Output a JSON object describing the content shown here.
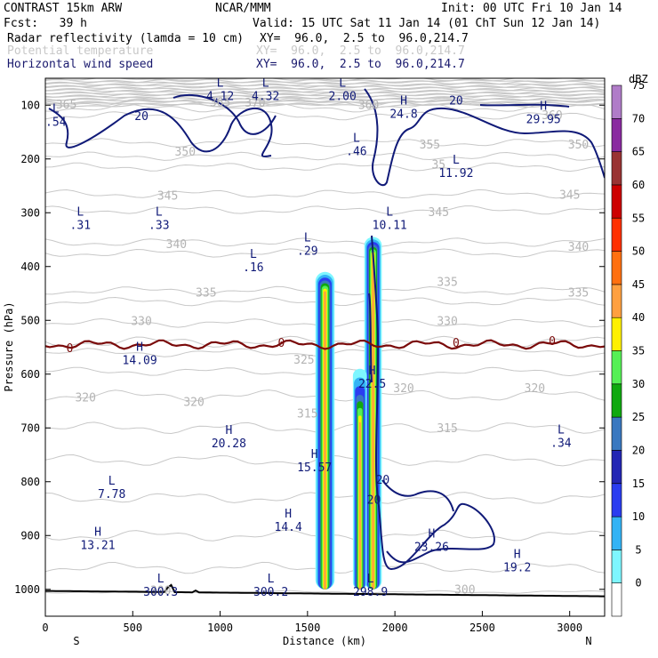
{
  "header": {
    "model": "CONTRAST 15km ARW",
    "center": "NCAR/MMM",
    "init": "Init: 00 UTC Fri 10 Jan 14",
    "fcst": "Fcst:   39 h",
    "valid": "Valid: 15 UTC Sat 11 Jan 14 (01 ChT Sun 12 Jan 14)",
    "field1": "Radar reflectivity (lamda = 10 cm)",
    "field1_xy": "XY=  96.0,  2.5 to  96.0,214.7",
    "field2": "Potential temperature",
    "field2_xy": "XY=  96.0,  2.5 to  96.0,214.7",
    "field3": "Horizontal wind speed",
    "field3_xy": "XY=  96.0,  2.5 to  96.0,214.7"
  },
  "chart_data": {
    "type": "cross-section",
    "xlabel": "Distance (km)",
    "ylabel": "Pressure (hPa)",
    "xlim": [
      0,
      3200
    ],
    "ylim": [
      1050,
      50
    ],
    "x_ticks": [
      "0",
      "500",
      "1000",
      "1500",
      "2000",
      "2500",
      "3000"
    ],
    "y_ticks": [
      "100",
      "200",
      "300",
      "400",
      "500",
      "600",
      "700",
      "800",
      "900",
      "1000"
    ],
    "direction_labels": {
      "left": "S",
      "right": "N"
    },
    "colorbar": {
      "unit": "dBZ",
      "levels": [
        "0",
        "5",
        "10",
        "15",
        "20",
        "25",
        "30",
        "35",
        "40",
        "45",
        "50",
        "55",
        "60",
        "65",
        "70",
        "75"
      ],
      "colors": [
        "#ffffff",
        "#7ef6ff",
        "#33b3f5",
        "#2a3df0",
        "#2326b4",
        "#3a78c0",
        "#10a910",
        "#55f055",
        "#fff000",
        "#ffa040",
        "#ff7010",
        "#ff3000",
        "#cd0000",
        "#993333",
        "#8a2aa0",
        "#b07cc8"
      ]
    },
    "theta_labels": [
      {
        "v": "365",
        "x": 120,
        "p": 100
      },
      {
        "v": "365",
        "x": 1000,
        "p": 96
      },
      {
        "v": "370",
        "x": 1200,
        "p": 97
      },
      {
        "v": "360",
        "x": 1850,
        "p": 101
      },
      {
        "v": "360",
        "x": 2900,
        "p": 120
      },
      {
        "v": "355",
        "x": 2200,
        "p": 175
      },
      {
        "v": "350",
        "x": 800,
        "p": 188
      },
      {
        "v": "350",
        "x": 3050,
        "p": 175
      },
      {
        "v": "35",
        "x": 2250,
        "p": 212
      },
      {
        "v": "345",
        "x": 700,
        "p": 270
      },
      {
        "v": "345",
        "x": 2250,
        "p": 300
      },
      {
        "v": "345",
        "x": 3000,
        "p": 268
      },
      {
        "v": "340",
        "x": 750,
        "p": 360
      },
      {
        "v": "340",
        "x": 3050,
        "p": 365
      },
      {
        "v": "335",
        "x": 920,
        "p": 450
      },
      {
        "v": "335",
        "x": 2300,
        "p": 430
      },
      {
        "v": "335",
        "x": 3050,
        "p": 450
      },
      {
        "v": "330",
        "x": 550,
        "p": 503
      },
      {
        "v": "330",
        "x": 2300,
        "p": 503
      },
      {
        "v": "325",
        "x": 1480,
        "p": 575
      },
      {
        "v": "320",
        "x": 230,
        "p": 645
      },
      {
        "v": "320",
        "x": 850,
        "p": 653
      },
      {
        "v": "320",
        "x": 2050,
        "p": 628
      },
      {
        "v": "320",
        "x": 2800,
        "p": 628
      },
      {
        "v": "315",
        "x": 1500,
        "p": 675
      },
      {
        "v": "315",
        "x": 2300,
        "p": 702
      },
      {
        "v": "300",
        "x": 660,
        "p": 1004
      },
      {
        "v": "300",
        "x": 2400,
        "p": 1002
      }
    ],
    "wind_contour_labels": [
      {
        "v": "20",
        "x": 550,
        "p": 122
      },
      {
        "v": "20",
        "x": 2350,
        "p": 93
      },
      {
        "v": "0",
        "x": 140,
        "p": 553
      },
      {
        "v": "0",
        "x": 1350,
        "p": 543
      },
      {
        "v": "0",
        "x": 2350,
        "p": 543
      },
      {
        "v": "0",
        "x": 2900,
        "p": 540
      },
      {
        "v": "20",
        "x": 1930,
        "p": 798
      },
      {
        "v": "20",
        "x": 1880,
        "p": 835
      }
    ],
    "wind_extrema": [
      {
        "t": "L",
        "v": ".54",
        "x": 60,
        "p": 130
      },
      {
        "t": "L",
        "v": "4.12",
        "x": 1000,
        "p": 82
      },
      {
        "t": "L",
        "v": "4.32",
        "x": 1260,
        "p": 82
      },
      {
        "t": "L",
        "v": "2.00",
        "x": 1700,
        "p": 82
      },
      {
        "t": "H",
        "v": "24.8",
        "x": 2050,
        "p": 115
      },
      {
        "t": "H",
        "v": "29.95",
        "x": 2850,
        "p": 125
      },
      {
        "t": "L",
        "v": ".46",
        "x": 1780,
        "p": 185
      },
      {
        "t": "L",
        "v": "11.92",
        "x": 2350,
        "p": 225
      },
      {
        "t": "L",
        "v": ".31",
        "x": 200,
        "p": 322
      },
      {
        "t": "L",
        "v": ".33",
        "x": 650,
        "p": 322
      },
      {
        "t": "L",
        "v": ".29",
        "x": 1500,
        "p": 370
      },
      {
        "t": "L",
        "v": "10.11",
        "x": 1970,
        "p": 322
      },
      {
        "t": "L",
        "v": ".16",
        "x": 1190,
        "p": 400
      },
      {
        "t": "H",
        "v": "14.09",
        "x": 540,
        "p": 573
      },
      {
        "t": "H",
        "v": "22.5",
        "x": 1870,
        "p": 617
      },
      {
        "t": "H",
        "v": "20.28",
        "x": 1050,
        "p": 728
      },
      {
        "t": "H",
        "v": "15.57",
        "x": 1540,
        "p": 772
      },
      {
        "t": "L",
        "v": ".34",
        "x": 2950,
        "p": 727
      },
      {
        "t": "L",
        "v": "7.78",
        "x": 380,
        "p": 822
      },
      {
        "t": "H",
        "v": "14.4",
        "x": 1390,
        "p": 883
      },
      {
        "t": "H",
        "v": "13.21",
        "x": 300,
        "p": 917
      },
      {
        "t": "H",
        "v": "23.26",
        "x": 2210,
        "p": 920
      },
      {
        "t": "H",
        "v": "19.2",
        "x": 2700,
        "p": 958
      },
      {
        "t": "L",
        "v": "300.3",
        "x": 660,
        "p": 1004
      },
      {
        "t": "L",
        "v": "300.2",
        "x": 1290,
        "p": 1004
      },
      {
        "t": "L",
        "v": "298.9",
        "x": 1860,
        "p": 1004
      }
    ],
    "reflectivity_cells": [
      {
        "name": "cell-1",
        "x_center": 1600,
        "x_halfwidth": 55,
        "top": 410,
        "base": 1000,
        "core": [
          420,
          560,
          990
        ],
        "peak": "45"
      },
      {
        "name": "cell-2",
        "x_center": 1875,
        "x_halfwidth": 50,
        "top": 345,
        "base": 1000,
        "core": [
          350,
          610,
          990
        ],
        "peak": "45"
      },
      {
        "name": "cell-3",
        "x_center": 1800,
        "x_halfwidth": 40,
        "top": 590,
        "base": 1000,
        "core": [
          680,
          740,
          1000
        ],
        "peak": "40"
      }
    ]
  }
}
